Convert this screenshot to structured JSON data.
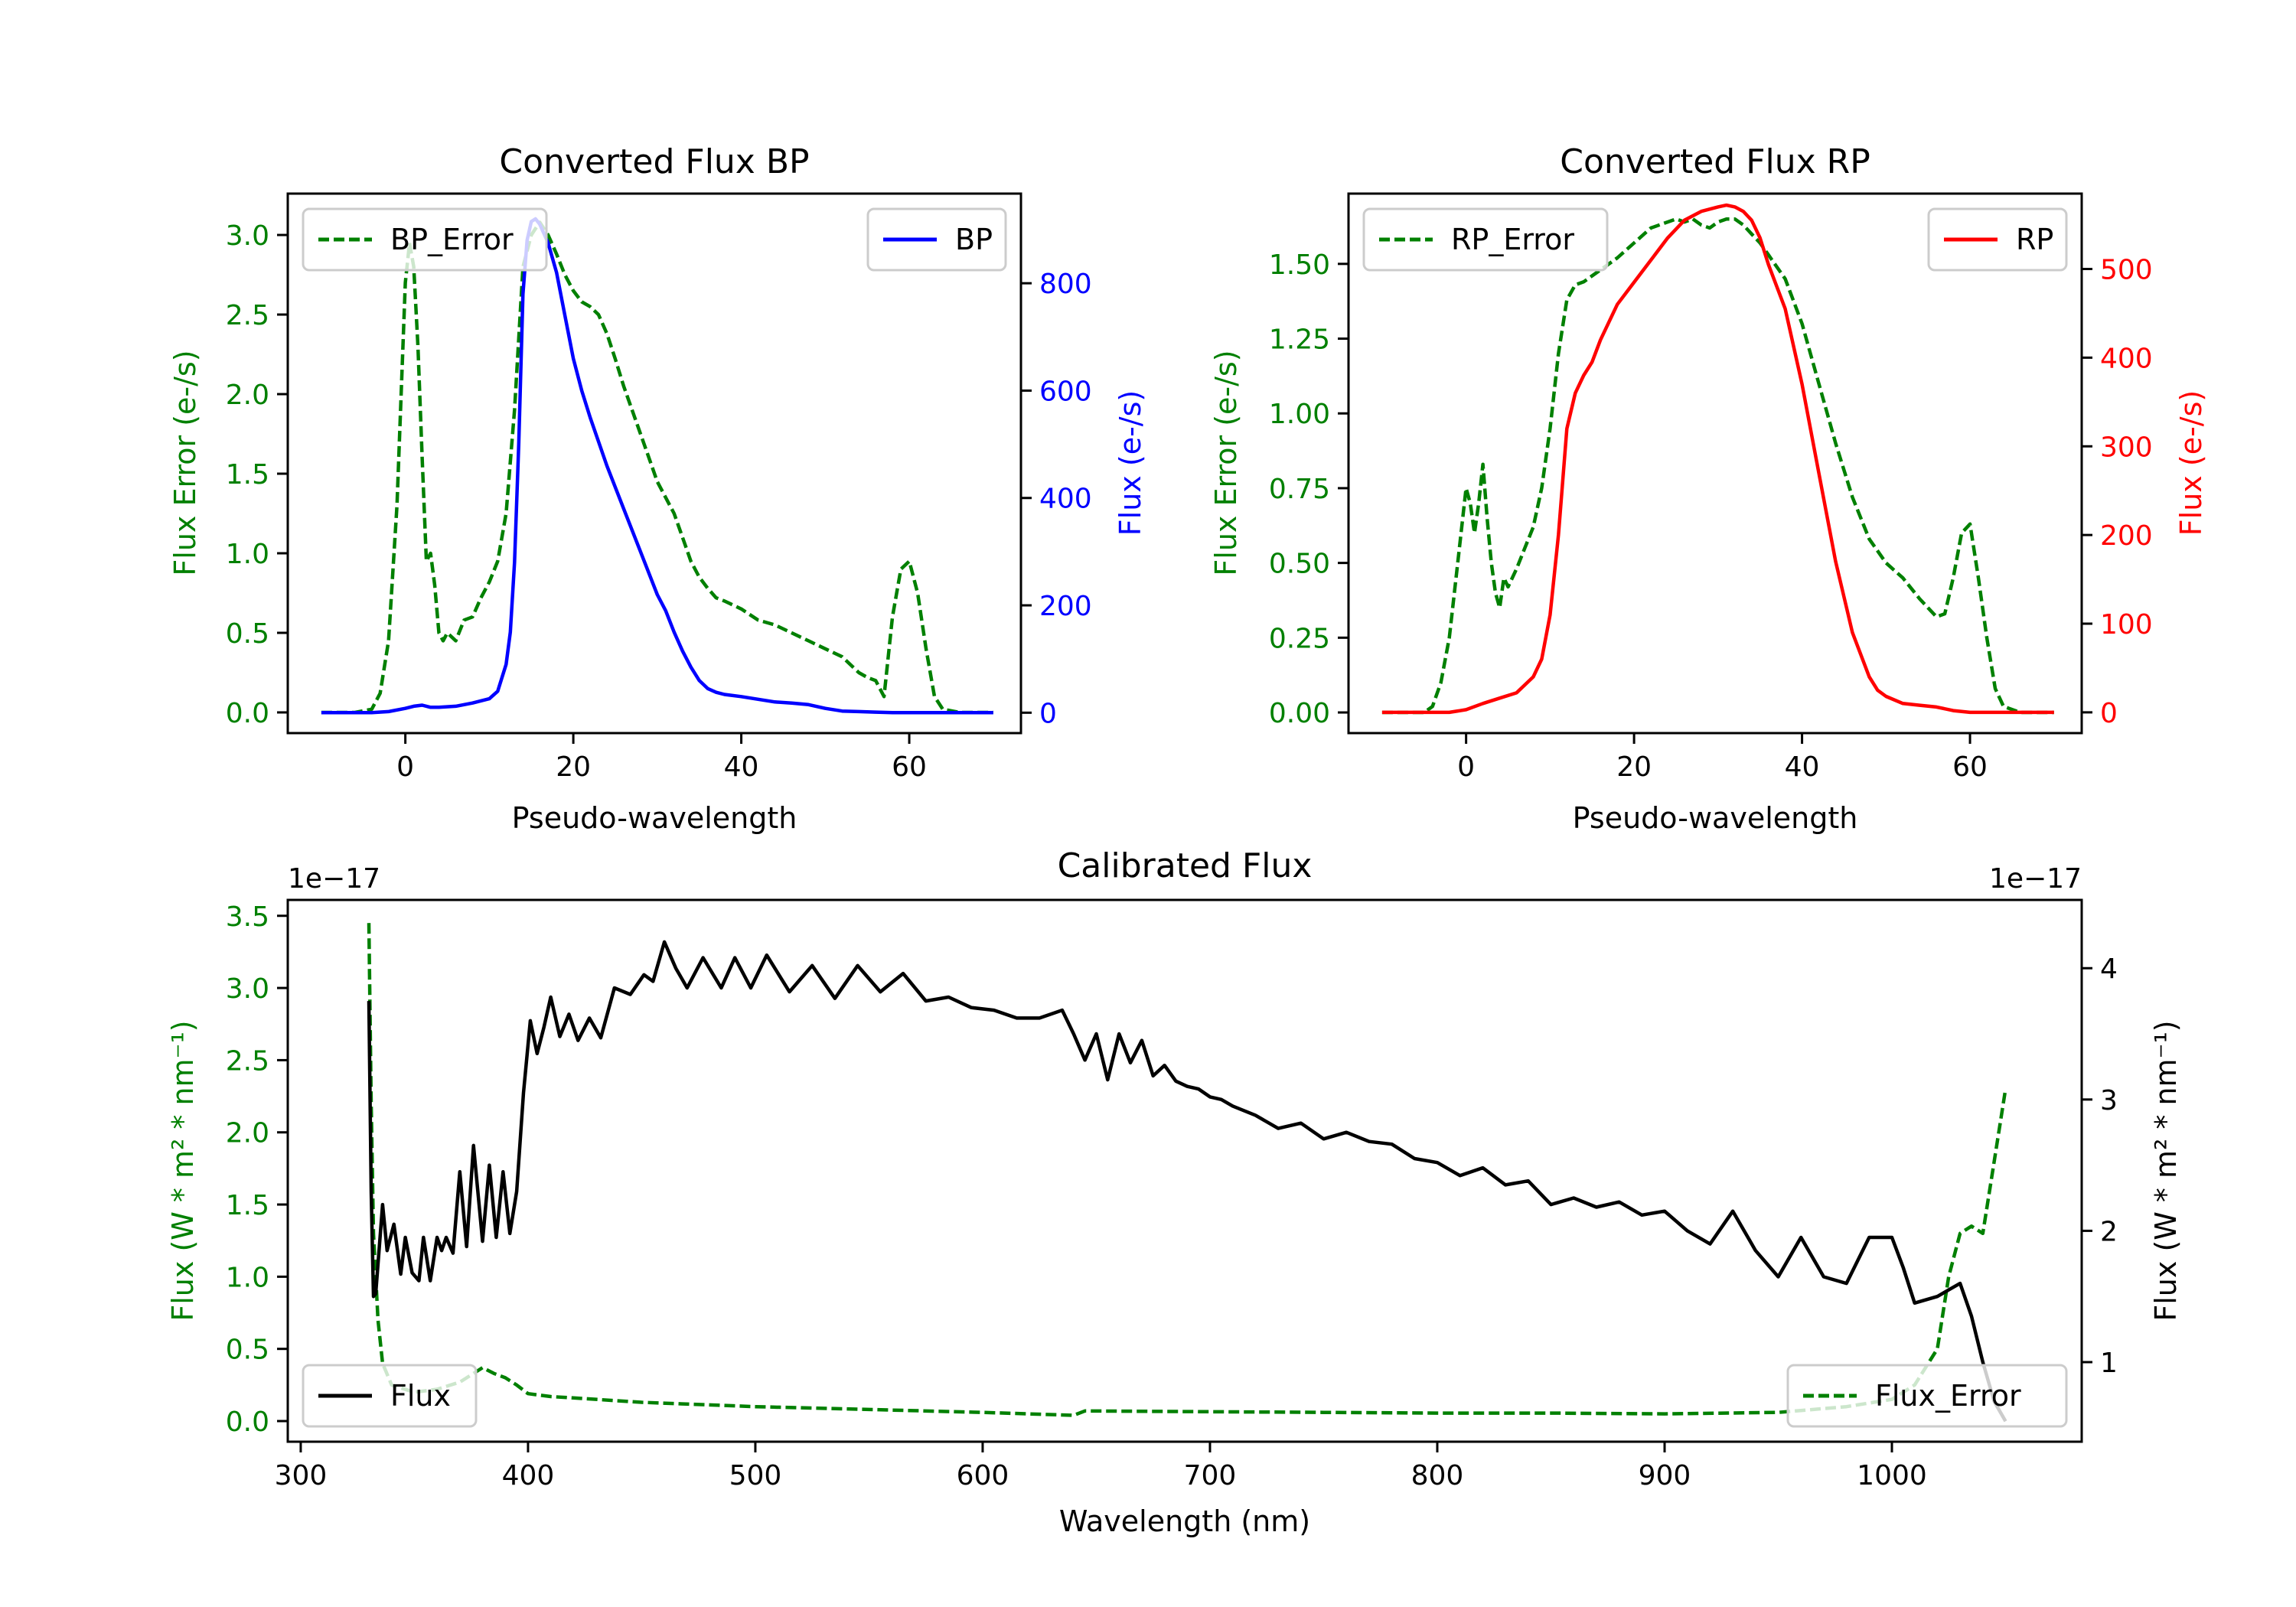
{
  "chart_data": [
    {
      "id": "bp",
      "type": "line",
      "title": "Converted Flux BP",
      "xlabel": "Pseudo-wavelength",
      "ylabel_left": "Flux Error (e-/s)",
      "ylabel_right": "Flux (e-/s)",
      "xlim": [
        -14,
        73.3
      ],
      "ylim_left": [
        -0.13,
        3.26
      ],
      "ylim_right": [
        -38,
        967
      ],
      "xticks": [
        0,
        20,
        40,
        60
      ],
      "yticks_left": [
        "0.0",
        "0.5",
        "1.0",
        "1.5",
        "2.0",
        "2.5",
        "3.0"
      ],
      "yticks_right": [
        "0",
        "200",
        "400",
        "600",
        "800"
      ],
      "left_color": "#008000",
      "right_color": "#0000ff",
      "legend_left": {
        "label": "BP_Error",
        "position": "upper-left"
      },
      "legend_right": {
        "label": "BP",
        "position": "upper-right"
      },
      "series": [
        {
          "name": "BP_Error",
          "axis": "left",
          "color": "#008000",
          "style": "dashed",
          "x": [
            -10,
            -6,
            -4,
            -3,
            -2,
            -1,
            0,
            0.5,
            1,
            1.5,
            2,
            2.5,
            3,
            3.5,
            4,
            4.5,
            5,
            6,
            7,
            8,
            9,
            10,
            11,
            12,
            13,
            14,
            15,
            16,
            17,
            18,
            19,
            20,
            21,
            22,
            23,
            24,
            25,
            26,
            27,
            28,
            29,
            30,
            31,
            32,
            33,
            34,
            35,
            36,
            37,
            38,
            40,
            42,
            44,
            46,
            48,
            50,
            52,
            54,
            55,
            56,
            57,
            58,
            59,
            60,
            61,
            62,
            63,
            64,
            66,
            70
          ],
          "y": [
            0.0,
            0.0,
            0.02,
            0.12,
            0.45,
            1.3,
            2.7,
            2.95,
            2.8,
            2.3,
            1.6,
            0.95,
            1.0,
            0.8,
            0.5,
            0.45,
            0.5,
            0.45,
            0.58,
            0.6,
            0.72,
            0.82,
            0.95,
            1.25,
            1.9,
            2.8,
            3.0,
            3.08,
            3.0,
            2.88,
            2.75,
            2.65,
            2.58,
            2.55,
            2.5,
            2.38,
            2.22,
            2.05,
            1.9,
            1.75,
            1.6,
            1.45,
            1.35,
            1.25,
            1.1,
            0.95,
            0.85,
            0.78,
            0.72,
            0.7,
            0.65,
            0.58,
            0.55,
            0.5,
            0.45,
            0.4,
            0.35,
            0.25,
            0.22,
            0.2,
            0.1,
            0.6,
            0.9,
            0.95,
            0.75,
            0.4,
            0.1,
            0.02,
            0.0,
            0.0
          ]
        },
        {
          "name": "BP",
          "axis": "right",
          "color": "#0000ff",
          "style": "solid",
          "x": [
            -10,
            -4,
            -2,
            0,
            1,
            2,
            3,
            4,
            6,
            8,
            10,
            11,
            12,
            12.5,
            13,
            13.5,
            14,
            14.5,
            15,
            15.5,
            16,
            17,
            18,
            19,
            20,
            21,
            22,
            24,
            26,
            28,
            30,
            31,
            32,
            33,
            34,
            35,
            36,
            37,
            38,
            40,
            42,
            44,
            46,
            48,
            50,
            52,
            54,
            56,
            58,
            60,
            62,
            64,
            66,
            70
          ],
          "y": [
            0,
            0,
            2,
            8,
            12,
            14,
            10,
            10,
            12,
            18,
            26,
            40,
            90,
            150,
            280,
            500,
            780,
            880,
            915,
            920,
            910,
            875,
            820,
            740,
            660,
            600,
            550,
            460,
            380,
            300,
            220,
            190,
            150,
            115,
            85,
            60,
            45,
            38,
            34,
            30,
            25,
            20,
            18,
            15,
            8,
            3,
            2,
            1,
            0,
            0,
            0,
            0,
            0,
            0
          ]
        }
      ]
    },
    {
      "id": "rp",
      "type": "line",
      "title": "Converted Flux RP",
      "xlabel": "Pseudo-wavelength",
      "ylabel_left": "Flux Error (e-/s)",
      "ylabel_right": "Flux (e-/s)",
      "xlim": [
        -14,
        73.3
      ],
      "ylim_left": [
        -0.069,
        1.735
      ],
      "ylim_right": [
        -23.4,
        585
      ],
      "xticks": [
        0,
        20,
        40,
        60
      ],
      "yticks_left": [
        "0.00",
        "0.25",
        "0.50",
        "0.75",
        "1.00",
        "1.25",
        "1.50"
      ],
      "yticks_right": [
        "0",
        "100",
        "200",
        "300",
        "400",
        "500"
      ],
      "left_color": "#008000",
      "right_color": "#ff0000",
      "legend_left": {
        "label": "RP_Error",
        "position": "upper-left"
      },
      "legend_right": {
        "label": "RP",
        "position": "upper-right"
      },
      "series": [
        {
          "name": "RP_Error",
          "axis": "left",
          "color": "#008000",
          "style": "dashed",
          "x": [
            -10,
            -5,
            -4,
            -3,
            -2,
            -1,
            0,
            0.5,
            1,
            1.5,
            2,
            2.5,
            3,
            3.5,
            4,
            4.5,
            5,
            6,
            7,
            8,
            9,
            10,
            11,
            12,
            13,
            14,
            15,
            16,
            18,
            20,
            22,
            24,
            25,
            26,
            27,
            28,
            29,
            30,
            31,
            32,
            33,
            34,
            35,
            36,
            38,
            40,
            42,
            44,
            46,
            48,
            50,
            52,
            54,
            55,
            56,
            57,
            58,
            59,
            60,
            61,
            62,
            63,
            64,
            66,
            70
          ],
          "y": [
            0.0,
            0.0,
            0.02,
            0.1,
            0.25,
            0.5,
            0.75,
            0.7,
            0.6,
            0.7,
            0.83,
            0.65,
            0.5,
            0.4,
            0.35,
            0.45,
            0.42,
            0.48,
            0.55,
            0.62,
            0.75,
            0.95,
            1.2,
            1.38,
            1.43,
            1.44,
            1.46,
            1.48,
            1.52,
            1.57,
            1.62,
            1.64,
            1.65,
            1.64,
            1.65,
            1.63,
            1.62,
            1.64,
            1.65,
            1.65,
            1.63,
            1.6,
            1.57,
            1.53,
            1.45,
            1.3,
            1.1,
            0.9,
            0.72,
            0.58,
            0.5,
            0.45,
            0.38,
            0.35,
            0.32,
            0.33,
            0.45,
            0.6,
            0.63,
            0.45,
            0.25,
            0.08,
            0.02,
            0.0,
            0.0
          ]
        },
        {
          "name": "RP",
          "axis": "right",
          "color": "#ff0000",
          "style": "solid",
          "x": [
            -10,
            -2,
            0,
            2,
            4,
            6,
            8,
            9,
            10,
            11,
            12,
            13,
            14,
            15,
            16,
            18,
            20,
            22,
            24,
            26,
            28,
            30,
            31,
            32,
            33,
            34,
            35,
            36,
            38,
            40,
            42,
            44,
            46,
            48,
            49,
            50,
            52,
            54,
            56,
            58,
            60,
            62,
            64,
            66,
            70
          ],
          "y": [
            0,
            0,
            3,
            10,
            16,
            22,
            40,
            60,
            110,
            200,
            320,
            360,
            380,
            395,
            420,
            460,
            485,
            510,
            535,
            555,
            565,
            570,
            572,
            570,
            565,
            555,
            535,
            505,
            455,
            370,
            270,
            170,
            90,
            40,
            25,
            18,
            10,
            8,
            6,
            2,
            0,
            0,
            0,
            0,
            0
          ]
        }
      ]
    },
    {
      "id": "calibrated",
      "type": "line",
      "title": "Calibrated Flux",
      "xlabel": "Wavelength (nm)",
      "ylabel_left": "Flux (W * m² * nm⁻¹)",
      "ylabel_right": "Flux (W * m² * nm⁻¹)",
      "offset_left": "1e−17",
      "offset_right": "1e−17",
      "xlim": [
        294.3,
        1083.5
      ],
      "ylim_left": [
        -0.143,
        3.61
      ],
      "ylim_right": [
        0.394,
        4.52
      ],
      "xticks": [
        300,
        400,
        500,
        600,
        700,
        800,
        900,
        1000
      ],
      "yticks_left": [
        "0.0",
        "0.5",
        "1.0",
        "1.5",
        "2.0",
        "2.5",
        "3.0",
        "3.5"
      ],
      "yticks_right": [
        "1",
        "2",
        "3",
        "4"
      ],
      "left_color": "#008000",
      "right_color": "#000000",
      "legend_left": {
        "label": "Flux",
        "position": "lower-left"
      },
      "legend_right": {
        "label": "Flux_Error",
        "position": "lower-right"
      },
      "series": [
        {
          "name": "Flux_Error",
          "axis": "left",
          "color": "#008000",
          "style": "dashed",
          "x": [
            330,
            331,
            332,
            334,
            336,
            340,
            350,
            360,
            370,
            375,
            380,
            385,
            390,
            395,
            400,
            405,
            410,
            420,
            450,
            500,
            550,
            600,
            640,
            645,
            700,
            750,
            800,
            850,
            900,
            950,
            980,
            1000,
            1010,
            1020,
            1025,
            1030,
            1035,
            1040,
            1045,
            1050
          ],
          "y": [
            3.45,
            2.2,
            1.3,
            0.7,
            0.4,
            0.25,
            0.2,
            0.22,
            0.27,
            0.32,
            0.37,
            0.33,
            0.3,
            0.25,
            0.19,
            0.18,
            0.17,
            0.16,
            0.13,
            0.1,
            0.08,
            0.06,
            0.04,
            0.07,
            0.065,
            0.06,
            0.055,
            0.055,
            0.05,
            0.06,
            0.1,
            0.15,
            0.25,
            0.5,
            1.0,
            1.3,
            1.35,
            1.3,
            1.8,
            2.3
          ]
        },
        {
          "name": "Flux",
          "axis": "right",
          "color": "#000000",
          "style": "solid",
          "x": [
            330,
            331,
            332,
            333,
            336,
            338,
            341,
            344,
            346,
            349,
            352,
            354,
            357,
            360,
            362,
            364,
            367,
            370,
            373,
            376,
            380,
            383,
            386,
            389,
            392,
            395,
            398,
            401,
            404,
            407,
            410,
            414,
            418,
            422,
            427,
            432,
            438,
            445,
            451,
            455,
            460,
            465,
            470,
            477,
            485,
            491,
            498,
            505,
            515,
            525,
            535,
            545,
            555,
            565,
            575,
            585,
            595,
            605,
            615,
            625,
            635,
            640,
            645,
            650,
            655,
            660,
            665,
            670,
            675,
            680,
            685,
            690,
            695,
            700,
            705,
            710,
            720,
            730,
            740,
            750,
            760,
            770,
            780,
            790,
            800,
            810,
            820,
            830,
            840,
            850,
            860,
            870,
            880,
            890,
            900,
            910,
            920,
            930,
            940,
            950,
            960,
            970,
            980,
            990,
            1000,
            1005,
            1010,
            1020,
            1025,
            1030,
            1035,
            1040,
            1045,
            1050
          ],
          "y": [
            3.75,
            2.3,
            1.5,
            1.52,
            2.2,
            1.85,
            2.05,
            1.67,
            1.95,
            1.68,
            1.62,
            1.95,
            1.62,
            1.95,
            1.85,
            1.95,
            1.83,
            2.45,
            1.88,
            2.65,
            1.92,
            2.5,
            1.95,
            2.45,
            1.98,
            2.3,
            3.05,
            3.6,
            3.35,
            3.55,
            3.78,
            3.48,
            3.65,
            3.45,
            3.62,
            3.47,
            3.85,
            3.8,
            3.95,
            3.9,
            4.2,
            4.0,
            3.85,
            4.08,
            3.85,
            4.08,
            3.85,
            4.1,
            3.82,
            4.02,
            3.77,
            4.02,
            3.82,
            3.96,
            3.75,
            3.78,
            3.7,
            3.68,
            3.62,
            3.62,
            3.68,
            3.5,
            3.3,
            3.5,
            3.15,
            3.5,
            3.28,
            3.45,
            3.18,
            3.26,
            3.14,
            3.1,
            3.08,
            3.02,
            3.0,
            2.95,
            2.88,
            2.78,
            2.82,
            2.7,
            2.75,
            2.68,
            2.66,
            2.55,
            2.52,
            2.42,
            2.48,
            2.35,
            2.38,
            2.2,
            2.25,
            2.18,
            2.22,
            2.12,
            2.15,
            2.0,
            1.9,
            2.15,
            1.85,
            1.65,
            1.95,
            1.65,
            1.6,
            1.95,
            1.95,
            1.72,
            1.45,
            1.5,
            1.55,
            1.6,
            1.35,
            1.0,
            0.7,
            0.55
          ]
        }
      ]
    }
  ]
}
